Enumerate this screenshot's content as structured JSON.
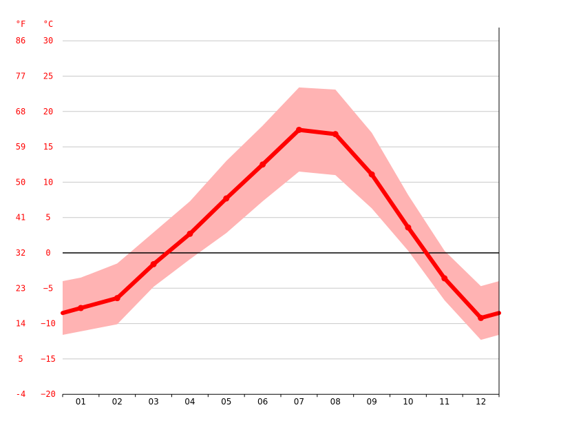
{
  "chart_data": {
    "type": "line",
    "units": {
      "fahrenheit": "°F",
      "celsius": "°C"
    },
    "categories": [
      "01",
      "02",
      "03",
      "04",
      "05",
      "06",
      "07",
      "08",
      "09",
      "10",
      "11",
      "12"
    ],
    "series": [
      {
        "role": "mean",
        "values": [
          -7.8,
          -6.4,
          -1.6,
          2.7,
          7.7,
          12.5,
          17.4,
          16.8,
          11.1,
          3.6,
          -3.6,
          -9.2
        ]
      },
      {
        "role": "max",
        "values": [
          -3.5,
          -1.5,
          2.9,
          7.3,
          13.0,
          18.0,
          23.4,
          23.1,
          17.0,
          8.2,
          0.3,
          -4.7
        ]
      },
      {
        "role": "min",
        "values": [
          -11.1,
          -10.1,
          -4.8,
          -0.9,
          2.8,
          7.3,
          11.5,
          11.0,
          6.3,
          0.3,
          -6.7,
          -12.3
        ]
      }
    ],
    "edge_values": {
      "left": {
        "mean": -8.5,
        "max": -4.0,
        "min": -11.6
      },
      "right": {
        "mean": -8.5,
        "max": -4.0,
        "min": -11.6
      }
    },
    "y_ticks_celsius": [
      "30",
      "25",
      "20",
      "15",
      "10",
      "5",
      "0",
      "−5",
      "−10",
      "−15",
      "−20"
    ],
    "y_ticks_fahrenheit": [
      "86",
      "77",
      "68",
      "59",
      "50",
      "41",
      "32",
      "23",
      "14",
      "5",
      "-4"
    ],
    "y_tick_values": [
      30,
      25,
      20,
      15,
      10,
      5,
      0,
      -5,
      -10,
      -15,
      -20
    ],
    "ylim": [
      -20,
      32
    ],
    "grid": true,
    "zero_line": true,
    "colors": {
      "line": "#ff0000",
      "band": "#ffb3b3",
      "grid": "#c8c8c8",
      "axis": "#000000",
      "tick_text": "#ff0000"
    }
  }
}
